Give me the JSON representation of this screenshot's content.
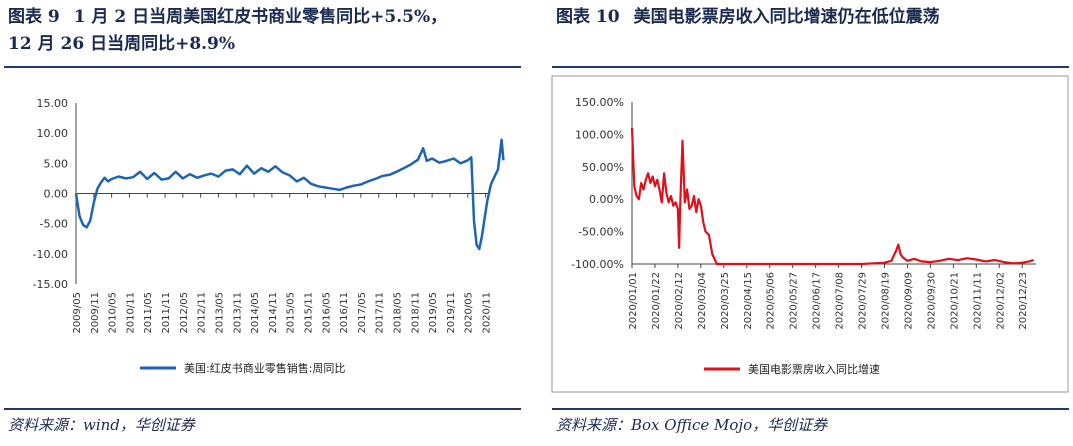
{
  "left": {
    "figure_label": "图表 9",
    "title_line1": "1 月 2 日当周美国红皮书商业零售同比+5.5%，",
    "title_line2": "12 月 26 日当周同比+8.9%",
    "source": "资料来源：wind，华创证券"
  },
  "right": {
    "figure_label": "图表 10",
    "title": "美国电影票房收入同比增速仍在低位震荡",
    "source": "资料来源：Box Office Mojo，华创证券"
  },
  "colors": {
    "left_series": "#1f64b4",
    "right_series": "#e0101a",
    "text": "#1a2a50"
  },
  "chart_data": [
    {
      "type": "line",
      "xlabel": "",
      "ylabel": "",
      "ylim": [
        -15,
        15
      ],
      "yticks": [
        "15.00",
        "10.00",
        "5.00",
        "0.00",
        "-5.00",
        "-10.00",
        "-15.00"
      ],
      "xticks": [
        "2009/05",
        "2009/11",
        "2010/05",
        "2010/11",
        "2011/05",
        "2011/11",
        "2012/05",
        "2012/11",
        "2013/05",
        "2013/11",
        "2014/05",
        "2014/11",
        "2015/05",
        "2015/11",
        "2016/05",
        "2016/11",
        "2017/05",
        "2017/11",
        "2018/05",
        "2018/11",
        "2019/05",
        "2019/11",
        "2020/05",
        "2020/11"
      ],
      "legend": "bottom",
      "series": [
        {
          "name": "美国:红皮书商业零售销售:周同比",
          "points": [
            [
              0.0,
              0.0
            ],
            [
              0.2,
              -3.8
            ],
            [
              0.4,
              -5.2
            ],
            [
              0.6,
              -5.6
            ],
            [
              0.8,
              -4.5
            ],
            [
              1.0,
              -1.5
            ],
            [
              1.2,
              0.8
            ],
            [
              1.4,
              1.8
            ],
            [
              1.6,
              2.6
            ],
            [
              1.8,
              2.0
            ],
            [
              2.0,
              2.4
            ],
            [
              2.4,
              2.8
            ],
            [
              2.8,
              2.5
            ],
            [
              3.2,
              2.7
            ],
            [
              3.6,
              3.6
            ],
            [
              4.0,
              2.4
            ],
            [
              4.4,
              3.4
            ],
            [
              4.8,
              2.3
            ],
            [
              5.2,
              2.5
            ],
            [
              5.6,
              3.6
            ],
            [
              6.0,
              2.5
            ],
            [
              6.4,
              3.2
            ],
            [
              6.8,
              2.6
            ],
            [
              7.2,
              3.0
            ],
            [
              7.6,
              3.3
            ],
            [
              8.0,
              2.8
            ],
            [
              8.4,
              3.8
            ],
            [
              8.8,
              4.0
            ],
            [
              9.2,
              3.2
            ],
            [
              9.6,
              4.6
            ],
            [
              10.0,
              3.3
            ],
            [
              10.4,
              4.2
            ],
            [
              10.8,
              3.6
            ],
            [
              11.2,
              4.5
            ],
            [
              11.6,
              3.5
            ],
            [
              12.0,
              3.0
            ],
            [
              12.4,
              2.0
            ],
            [
              12.8,
              2.6
            ],
            [
              13.2,
              1.6
            ],
            [
              13.6,
              1.2
            ],
            [
              14.0,
              1.0
            ],
            [
              14.4,
              0.8
            ],
            [
              14.8,
              0.6
            ],
            [
              15.2,
              1.0
            ],
            [
              15.6,
              1.3
            ],
            [
              16.0,
              1.5
            ],
            [
              16.4,
              2.0
            ],
            [
              16.8,
              2.4
            ],
            [
              17.2,
              2.9
            ],
            [
              17.6,
              3.1
            ],
            [
              18.0,
              3.6
            ],
            [
              18.4,
              4.2
            ],
            [
              18.8,
              4.8
            ],
            [
              19.2,
              5.6
            ],
            [
              19.5,
              7.5
            ],
            [
              19.7,
              5.4
            ],
            [
              20.0,
              5.8
            ],
            [
              20.4,
              5.1
            ],
            [
              20.8,
              5.4
            ],
            [
              21.2,
              5.8
            ],
            [
              21.6,
              5.0
            ],
            [
              22.0,
              5.5
            ],
            [
              22.2,
              6.0
            ],
            [
              22.35,
              -4.5
            ],
            [
              22.5,
              -8.5
            ],
            [
              22.65,
              -9.2
            ],
            [
              22.8,
              -7.0
            ],
            [
              22.95,
              -4.0
            ],
            [
              23.1,
              -1.2
            ],
            [
              23.3,
              1.5
            ],
            [
              23.5,
              2.8
            ],
            [
              23.7,
              4.0
            ],
            [
              23.9,
              8.9
            ],
            [
              24.0,
              5.5
            ]
          ]
        }
      ]
    },
    {
      "type": "line",
      "xlabel": "",
      "ylabel": "",
      "ylim": [
        -100,
        150
      ],
      "yticks": [
        "150.00%",
        "100.00%",
        "50.00%",
        "0.00%",
        "-50.00%",
        "-100.00%"
      ],
      "xticks": [
        "2020/01/01",
        "2020/01/22",
        "2020/02/12",
        "2020/03/04",
        "2020/03/25",
        "2020/04/15",
        "2020/05/06",
        "2020/05/27",
        "2020/06/17",
        "2020/07/08",
        "2020/07/29",
        "2020/08/19",
        "2020/09/09",
        "2020/09/30",
        "2020/10/21",
        "2020/11/11",
        "2020/12/02",
        "2020/12/23"
      ],
      "legend": "bottom",
      "series": [
        {
          "name": "美国电影票房收入同比增速",
          "points": [
            [
              0.0,
              110
            ],
            [
              0.1,
              20
            ],
            [
              0.2,
              5
            ],
            [
              0.3,
              0
            ],
            [
              0.4,
              25
            ],
            [
              0.5,
              15
            ],
            [
              0.6,
              30
            ],
            [
              0.7,
              40
            ],
            [
              0.8,
              25
            ],
            [
              0.9,
              35
            ],
            [
              1.0,
              20
            ],
            [
              1.1,
              30
            ],
            [
              1.2,
              15
            ],
            [
              1.3,
              -5
            ],
            [
              1.4,
              40
            ],
            [
              1.5,
              10
            ],
            [
              1.6,
              -5
            ],
            [
              1.7,
              5
            ],
            [
              1.8,
              -10
            ],
            [
              1.9,
              -5
            ],
            [
              2.0,
              -15
            ],
            [
              2.05,
              -75
            ],
            [
              2.1,
              -10
            ],
            [
              2.2,
              90
            ],
            [
              2.3,
              -5
            ],
            [
              2.4,
              15
            ],
            [
              2.5,
              -15
            ],
            [
              2.6,
              -10
            ],
            [
              2.7,
              5
            ],
            [
              2.8,
              -20
            ],
            [
              2.9,
              0
            ],
            [
              3.0,
              -10
            ],
            [
              3.1,
              -35
            ],
            [
              3.2,
              -50
            ],
            [
              3.35,
              -55
            ],
            [
              3.5,
              -85
            ],
            [
              3.7,
              -100
            ],
            [
              4.0,
              -100
            ],
            [
              5.0,
              -100
            ],
            [
              6.0,
              -100
            ],
            [
              7.0,
              -100
            ],
            [
              8.0,
              -100
            ],
            [
              9.0,
              -100
            ],
            [
              10.0,
              -100
            ],
            [
              11.0,
              -98
            ],
            [
              11.3,
              -95
            ],
            [
              11.5,
              -80
            ],
            [
              11.6,
              -70
            ],
            [
              11.7,
              -85
            ],
            [
              11.8,
              -90
            ],
            [
              12.0,
              -95
            ],
            [
              12.3,
              -92
            ],
            [
              12.6,
              -96
            ],
            [
              13.0,
              -97
            ],
            [
              13.4,
              -95
            ],
            [
              13.8,
              -92
            ],
            [
              14.2,
              -94
            ],
            [
              14.6,
              -91
            ],
            [
              15.0,
              -93
            ],
            [
              15.4,
              -96
            ],
            [
              15.8,
              -94
            ],
            [
              16.2,
              -97
            ],
            [
              16.6,
              -99
            ],
            [
              17.0,
              -98
            ],
            [
              17.3,
              -96
            ],
            [
              17.5,
              -94
            ]
          ]
        }
      ]
    }
  ]
}
